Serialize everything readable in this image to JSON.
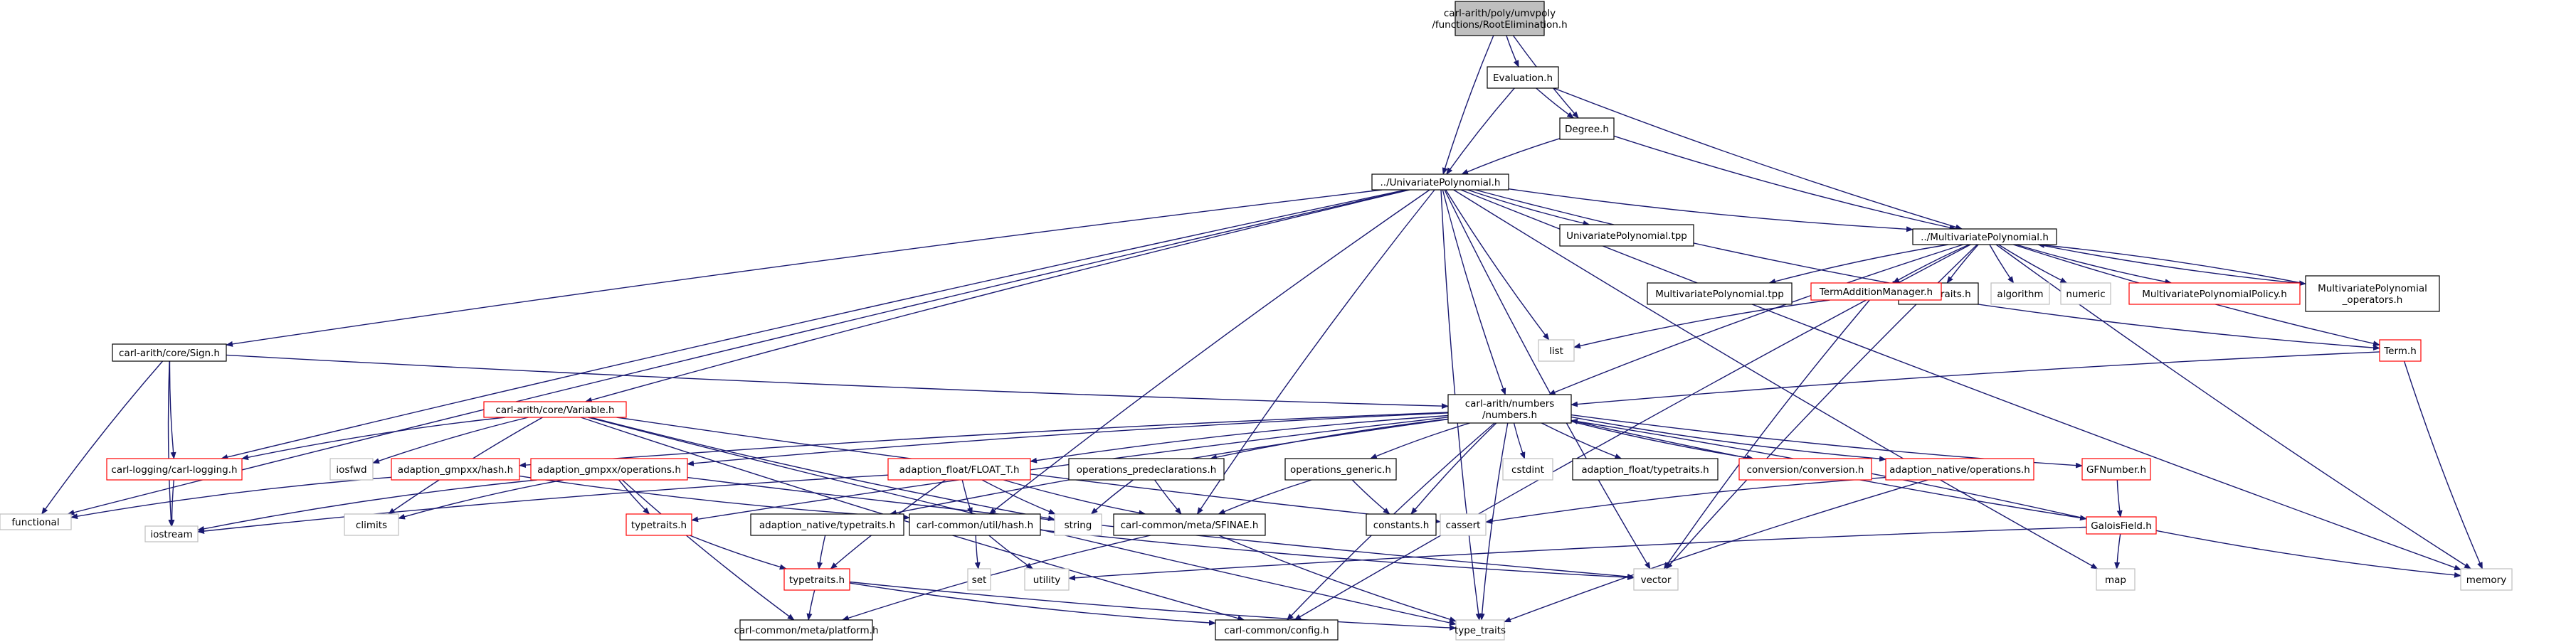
{
  "graph": {
    "root": "carl-arith/poly/umvpoly/functions/RootElimination.h",
    "nodes": [
      {
        "id": "root",
        "lines": [
          "carl-arith/poly/umvpoly",
          "/functions/RootElimination.h"
        ],
        "style": "root"
      },
      {
        "id": "evaluation",
        "lines": [
          "Evaluation.h"
        ],
        "style": "black"
      },
      {
        "id": "degree",
        "lines": [
          "Degree.h"
        ],
        "style": "black"
      },
      {
        "id": "univariate",
        "lines": [
          "../UnivariatePolynomial.h"
        ],
        "style": "black"
      },
      {
        "id": "multivariate",
        "lines": [
          "../MultivariatePolynomial.h"
        ],
        "style": "black"
      },
      {
        "id": "univariate_tpp",
        "lines": [
          "UnivariatePolynomial.tpp"
        ],
        "style": "black"
      },
      {
        "id": "typetraits_up",
        "lines": [
          "../typetraits.h"
        ],
        "style": "black"
      },
      {
        "id": "multivariate_tpp",
        "lines": [
          "MultivariatePolynomial.tpp"
        ],
        "style": "black"
      },
      {
        "id": "term_addition",
        "lines": [
          "TermAdditionManager.h"
        ],
        "style": "red"
      },
      {
        "id": "algorithm",
        "lines": [
          "algorithm"
        ],
        "style": "gray"
      },
      {
        "id": "numeric",
        "lines": [
          "numeric"
        ],
        "style": "gray"
      },
      {
        "id": "mv_policy",
        "lines": [
          "MultivariatePolynomialPolicy.h"
        ],
        "style": "red"
      },
      {
        "id": "mv_operators",
        "lines": [
          "MultivariatePolynomial",
          "_operators.h"
        ],
        "style": "black"
      },
      {
        "id": "sign",
        "lines": [
          "carl-arith/core/Sign.h"
        ],
        "style": "black"
      },
      {
        "id": "list",
        "lines": [
          "list"
        ],
        "style": "gray"
      },
      {
        "id": "term",
        "lines": [
          "Term.h"
        ],
        "style": "red"
      },
      {
        "id": "numbers",
        "lines": [
          "carl-arith/numbers",
          "/numbers.h"
        ],
        "style": "black"
      },
      {
        "id": "variable",
        "lines": [
          "carl-arith/core/Variable.h"
        ],
        "style": "red"
      },
      {
        "id": "carl_logging",
        "lines": [
          "carl-logging/carl-logging.h"
        ],
        "style": "red"
      },
      {
        "id": "functional",
        "lines": [
          "functional"
        ],
        "style": "gray"
      },
      {
        "id": "iostream",
        "lines": [
          "iostream"
        ],
        "style": "gray"
      },
      {
        "id": "iosfwd",
        "lines": [
          "iosfwd"
        ],
        "style": "gray"
      },
      {
        "id": "gmpxx_hash",
        "lines": [
          "adaption_gmpxx/hash.h"
        ],
        "style": "red"
      },
      {
        "id": "gmpxx_ops",
        "lines": [
          "adaption_gmpxx/operations.h"
        ],
        "style": "red"
      },
      {
        "id": "climits",
        "lines": [
          "climits"
        ],
        "style": "gray"
      },
      {
        "id": "typetraits_red1",
        "lines": [
          "typetraits.h"
        ],
        "style": "red"
      },
      {
        "id": "float_t",
        "lines": [
          "adaption_float/FLOAT_T.h"
        ],
        "style": "red"
      },
      {
        "id": "string",
        "lines": [
          "string"
        ],
        "style": "gray"
      },
      {
        "id": "ops_predecl",
        "lines": [
          "operations_predeclarations.h"
        ],
        "style": "black"
      },
      {
        "id": "ops_generic",
        "lines": [
          "operations_generic.h"
        ],
        "style": "black"
      },
      {
        "id": "cstdint",
        "lines": [
          "cstdint"
        ],
        "style": "gray"
      },
      {
        "id": "float_typetraits",
        "lines": [
          "adaption_float/typetraits.h"
        ],
        "style": "black"
      },
      {
        "id": "conversion",
        "lines": [
          "conversion/conversion.h"
        ],
        "style": "red"
      },
      {
        "id": "native_ops",
        "lines": [
          "adaption_native/operations.h"
        ],
        "style": "red"
      },
      {
        "id": "gfnumber",
        "lines": [
          "GFNumber.h"
        ],
        "style": "red"
      },
      {
        "id": "native_typetraits",
        "lines": [
          "adaption_native/typetraits.h"
        ],
        "style": "black"
      },
      {
        "id": "hash",
        "lines": [
          "carl-common/util/hash.h"
        ],
        "style": "black"
      },
      {
        "id": "sfinae",
        "lines": [
          "carl-common/meta/SFINAE.h"
        ],
        "style": "black"
      },
      {
        "id": "constants",
        "lines": [
          "constants.h"
        ],
        "style": "black"
      },
      {
        "id": "cassert",
        "lines": [
          "cassert"
        ],
        "style": "gray"
      },
      {
        "id": "galoisfield",
        "lines": [
          "GaloisField.h"
        ],
        "style": "red"
      },
      {
        "id": "typetraits_red2",
        "lines": [
          "typetraits.h"
        ],
        "style": "red"
      },
      {
        "id": "set",
        "lines": [
          "set"
        ],
        "style": "gray"
      },
      {
        "id": "utility",
        "lines": [
          "utility"
        ],
        "style": "gray"
      },
      {
        "id": "map",
        "lines": [
          "map"
        ],
        "style": "gray"
      },
      {
        "id": "vector",
        "lines": [
          "vector"
        ],
        "style": "gray"
      },
      {
        "id": "memory",
        "lines": [
          "memory"
        ],
        "style": "gray"
      },
      {
        "id": "platform",
        "lines": [
          "carl-common/meta/platform.h"
        ],
        "style": "black"
      },
      {
        "id": "config",
        "lines": [
          "carl-common/config.h"
        ],
        "style": "black"
      },
      {
        "id": "type_traits",
        "lines": [
          "type_traits"
        ],
        "style": "gray"
      }
    ],
    "edges": [
      [
        "root",
        "evaluation"
      ],
      [
        "root",
        "degree"
      ],
      [
        "root",
        "univariate"
      ],
      [
        "evaluation",
        "degree"
      ],
      [
        "evaluation",
        "univariate"
      ],
      [
        "evaluation",
        "multivariate"
      ],
      [
        "degree",
        "univariate"
      ],
      [
        "degree",
        "multivariate"
      ],
      [
        "univariate",
        "multivariate"
      ],
      [
        "univariate",
        "univariate_tpp"
      ],
      [
        "univariate",
        "typetraits_up"
      ],
      [
        "univariate",
        "sign"
      ],
      [
        "univariate",
        "variable"
      ],
      [
        "univariate",
        "carl_logging"
      ],
      [
        "univariate",
        "functional"
      ],
      [
        "univariate",
        "numbers"
      ],
      [
        "univariate",
        "list"
      ],
      [
        "univariate",
        "hash"
      ],
      [
        "univariate",
        "sfinae"
      ],
      [
        "univariate",
        "map"
      ],
      [
        "univariate",
        "vector"
      ],
      [
        "univariate",
        "memory"
      ],
      [
        "univariate",
        "type_traits"
      ],
      [
        "multivariate",
        "typetraits_up"
      ],
      [
        "multivariate",
        "multivariate_tpp"
      ],
      [
        "multivariate",
        "term_addition"
      ],
      [
        "multivariate",
        "algorithm"
      ],
      [
        "multivariate",
        "numeric"
      ],
      [
        "multivariate",
        "mv_policy"
      ],
      [
        "multivariate",
        "mv_operators"
      ],
      [
        "multivariate",
        "term"
      ],
      [
        "multivariate",
        "numbers"
      ],
      [
        "multivariate",
        "vector"
      ],
      [
        "multivariate",
        "memory"
      ],
      [
        "multivariate",
        "config"
      ],
      [
        "mv_operators",
        "multivariate"
      ],
      [
        "term_addition",
        "list"
      ],
      [
        "term_addition",
        "term"
      ],
      [
        "term_addition",
        "vector"
      ],
      [
        "term",
        "numbers"
      ],
      [
        "term",
        "memory"
      ],
      [
        "sign",
        "numbers"
      ],
      [
        "sign",
        "carl_logging"
      ],
      [
        "sign",
        "functional"
      ],
      [
        "sign",
        "iostream"
      ],
      [
        "variable",
        "carl_logging"
      ],
      [
        "variable",
        "iosfwd"
      ],
      [
        "variable",
        "climits"
      ],
      [
        "variable",
        "string"
      ],
      [
        "variable",
        "cassert"
      ],
      [
        "variable",
        "config"
      ],
      [
        "variable",
        "type_traits"
      ],
      [
        "carl_logging",
        "iostream"
      ],
      [
        "numbers",
        "gmpxx_hash"
      ],
      [
        "numbers",
        "gmpxx_ops"
      ],
      [
        "numbers",
        "typetraits_red1"
      ],
      [
        "numbers",
        "float_t"
      ],
      [
        "numbers",
        "native_typetraits"
      ],
      [
        "numbers",
        "ops_predecl"
      ],
      [
        "numbers",
        "ops_generic"
      ],
      [
        "numbers",
        "cstdint"
      ],
      [
        "numbers",
        "float_typetraits"
      ],
      [
        "numbers",
        "conversion"
      ],
      [
        "numbers",
        "native_ops"
      ],
      [
        "numbers",
        "gfnumber"
      ],
      [
        "numbers",
        "galoisfield"
      ],
      [
        "numbers",
        "constants"
      ],
      [
        "numbers",
        "config"
      ],
      [
        "numbers",
        "type_traits"
      ],
      [
        "gmpxx_hash",
        "functional"
      ],
      [
        "gmpxx_hash",
        "hash"
      ],
      [
        "gmpxx_ops",
        "iostream"
      ],
      [
        "gmpxx_ops",
        "climits"
      ],
      [
        "gmpxx_ops",
        "typetraits_red1"
      ],
      [
        "gmpxx_ops",
        "platform"
      ],
      [
        "gmpxx_ops",
        "vector"
      ],
      [
        "typetraits_red1",
        "typetraits_red2"
      ],
      [
        "float_t",
        "iostream"
      ],
      [
        "float_t",
        "hash"
      ],
      [
        "float_t",
        "string"
      ],
      [
        "float_t",
        "sfinae"
      ],
      [
        "float_t",
        "typetraits_red2"
      ],
      [
        "ops_predecl",
        "sfinae"
      ],
      [
        "ops_predecl",
        "string"
      ],
      [
        "ops_generic",
        "sfinae"
      ],
      [
        "ops_generic",
        "constants"
      ],
      [
        "native_typetraits",
        "typetraits_red2"
      ],
      [
        "native_ops",
        "cassert"
      ],
      [
        "native_ops",
        "type_traits"
      ],
      [
        "gfnumber",
        "galoisfield"
      ],
      [
        "galoisfield",
        "numbers"
      ],
      [
        "galoisfield",
        "map"
      ],
      [
        "galoisfield",
        "memory"
      ],
      [
        "galoisfield",
        "utility"
      ],
      [
        "hash",
        "set"
      ],
      [
        "hash",
        "utility"
      ],
      [
        "hash",
        "vector"
      ],
      [
        "sfinae",
        "platform"
      ],
      [
        "sfinae",
        "type_traits"
      ],
      [
        "typetraits_red2",
        "platform"
      ],
      [
        "typetraits_red2",
        "config"
      ],
      [
        "typetraits_red2",
        "type_traits"
      ]
    ]
  }
}
